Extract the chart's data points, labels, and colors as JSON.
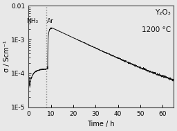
{
  "title_text": "Y₂O₃",
  "title_temp": "1200 °C",
  "xlabel": "Time / h",
  "ylabel": "σ / Scm⁻¹",
  "xmin": 0,
  "xmax": 65,
  "ymin": 1e-05,
  "ymax": 0.01,
  "vline_x": 8.0,
  "nh3_label": "NH₃",
  "ar_label": "Ar",
  "bg_color": "#e8e8e8",
  "line_color": "#111111",
  "vline_color": "#888888",
  "xticks": [
    0,
    10,
    20,
    30,
    40,
    50,
    60
  ],
  "title_fontsize": 7.5,
  "label_fontsize": 7,
  "tick_fontsize": 6.5
}
